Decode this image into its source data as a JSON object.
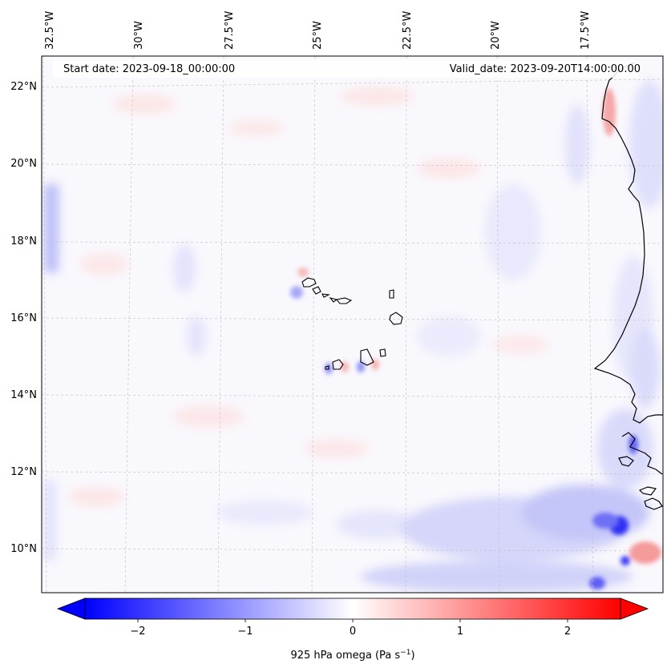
{
  "map": {
    "start_label": "Start date: 2023-09-18_00:00:00",
    "valid_label": "Valid_date: 2023-09-20T14:00:00.00",
    "lon_labels": [
      "32.5°W",
      "30°W",
      "27.5°W",
      "25°W",
      "22.5°W",
      "20°W",
      "17.5°W"
    ],
    "lat_labels": [
      "22°N",
      "20°N",
      "18°N",
      "16°N",
      "14°N",
      "12°N",
      "10°N"
    ],
    "gridlines": true,
    "gridline_style": "dashed"
  },
  "colorbar": {
    "colormap": "bwr",
    "min_color": "#0000ff",
    "mid_color": "#ffffff",
    "max_color": "#ff0000",
    "ticks": [
      "−2",
      "−1",
      "0",
      "1",
      "2"
    ],
    "tick_values": [
      -2,
      -1,
      0,
      1,
      2
    ],
    "range": [
      -2.5,
      2.5
    ],
    "label_main": "925 hPa omega (Pa s",
    "label_sup": "−1",
    "label_end": ")"
  }
}
